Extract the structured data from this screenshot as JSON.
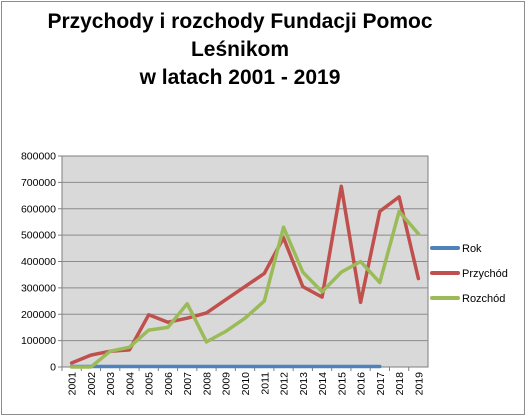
{
  "chart_data": {
    "type": "line",
    "title_lines": [
      "Przychody i rozchody Fundacji Pomoc",
      "Leśnikom",
      "w latach 2001 - 2019"
    ],
    "ylim": [
      0,
      800000
    ],
    "y_ticks": [
      "0",
      "100000",
      "200000",
      "300000",
      "400000",
      "500000",
      "600000",
      "700000",
      "800000"
    ],
    "y_tick_values": [
      0,
      100000,
      200000,
      300000,
      400000,
      500000,
      600000,
      700000,
      800000
    ],
    "grid": true,
    "legend_position": "right",
    "categories": [
      "2001",
      "2002",
      "2003",
      "2004",
      "2005",
      "2006",
      "2007",
      "2008",
      "2009",
      "2010",
      "2011",
      "2012",
      "2013",
      "2014",
      "2015",
      "2016",
      "2017",
      "2018",
      "2019"
    ],
    "series": [
      {
        "name": "Rok",
        "color": "#4f81bd",
        "values": [
          2001,
          2002,
          2003,
          2004,
          2005,
          2006,
          2007,
          2008,
          2009,
          2010,
          2011,
          2012,
          2013,
          2014,
          2015,
          2016,
          2017,
          null,
          null
        ]
      },
      {
        "name": "Przychód",
        "color": "#c0504d",
        "values": [
          15000,
          45000,
          60000,
          65000,
          198000,
          170000,
          185000,
          205000,
          255000,
          305000,
          355000,
          490000,
          305000,
          265000,
          685000,
          245000,
          590000,
          645000,
          335000
        ]
      },
      {
        "name": "Rozchód",
        "color": "#9bbb59",
        "values": [
          0,
          0,
          60000,
          75000,
          140000,
          150000,
          240000,
          95000,
          135000,
          185000,
          250000,
          530000,
          360000,
          285000,
          360000,
          400000,
          320000,
          590000,
          505000
        ]
      }
    ]
  }
}
